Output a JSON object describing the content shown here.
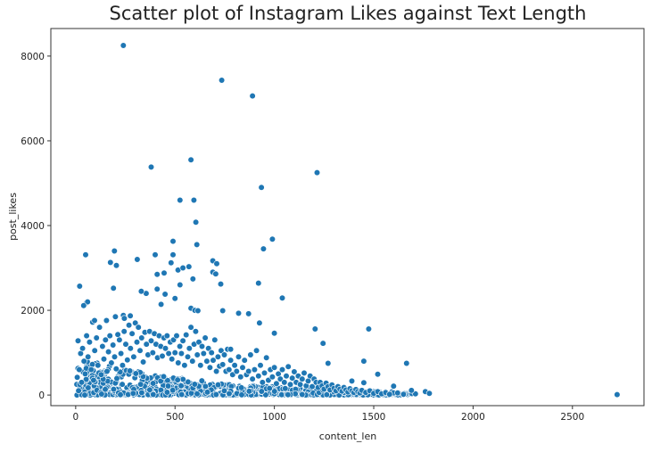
{
  "chart_data": {
    "type": "scatter",
    "title": "Scatter plot of Instagram Likes against Text Length",
    "xlabel": "content_len",
    "ylabel": "post_likes",
    "xlim": [
      -125,
      2860
    ],
    "ylim": [
      -250,
      8650
    ],
    "xticks": [
      0,
      500,
      1000,
      1500,
      2000,
      2500
    ],
    "yticks": [
      0,
      2000,
      4000,
      6000,
      8000
    ],
    "grid": false,
    "marker_color": "#1f77b4",
    "marker_edge_color": "#ffffff",
    "notable_points": [
      [
        240,
        8250
      ],
      [
        735,
        7430
      ],
      [
        890,
        7060
      ],
      [
        580,
        5550
      ],
      [
        380,
        5380
      ],
      [
        1215,
        5250
      ],
      [
        935,
        4900
      ],
      [
        525,
        4600
      ],
      [
        595,
        4600
      ],
      [
        605,
        4080
      ],
      [
        990,
        3680
      ],
      [
        490,
        3630
      ],
      [
        945,
        3450
      ],
      [
        610,
        3550
      ],
      [
        195,
        3400
      ],
      [
        50,
        3310
      ],
      [
        400,
        3310
      ],
      [
        490,
        3310
      ],
      [
        175,
        3130
      ],
      [
        310,
        3200
      ],
      [
        690,
        3170
      ],
      [
        710,
        3100
      ],
      [
        205,
        3060
      ],
      [
        570,
        3030
      ],
      [
        480,
        3120
      ],
      [
        515,
        2950
      ],
      [
        540,
        3000
      ],
      [
        445,
        2880
      ],
      [
        410,
        2850
      ],
      [
        690,
        2900
      ],
      [
        705,
        2860
      ],
      [
        590,
        2740
      ],
      [
        920,
        2640
      ],
      [
        410,
        2500
      ],
      [
        730,
        2620
      ],
      [
        20,
        2570
      ],
      [
        190,
        2520
      ],
      [
        355,
        2400
      ],
      [
        450,
        2380
      ],
      [
        525,
        2600
      ],
      [
        330,
        2450
      ],
      [
        430,
        2140
      ],
      [
        500,
        2280
      ],
      [
        55,
        2180
      ],
      [
        60,
        2200
      ],
      [
        40,
        2110
      ],
      [
        580,
        2050
      ],
      [
        600,
        2000
      ],
      [
        615,
        1990
      ],
      [
        740,
        1990
      ],
      [
        820,
        1930
      ],
      [
        870,
        1920
      ],
      [
        1040,
        2290
      ],
      [
        240,
        1880
      ],
      [
        275,
        1870
      ],
      [
        200,
        1850
      ],
      [
        245,
        1810
      ],
      [
        1205,
        1560
      ],
      [
        1475,
        1560
      ],
      [
        1245,
        1220
      ],
      [
        925,
        1700
      ],
      [
        1000,
        1460
      ],
      [
        95,
        1760
      ],
      [
        155,
        1760
      ],
      [
        780,
        1080
      ],
      [
        1450,
        800
      ],
      [
        1665,
        750
      ],
      [
        1270,
        750
      ],
      [
        1520,
        490
      ],
      [
        1450,
        290
      ],
      [
        1390,
        330
      ],
      [
        1600,
        210
      ],
      [
        1690,
        110
      ],
      [
        1760,
        80
      ],
      [
        1780,
        40
      ],
      [
        2725,
        10
      ]
    ],
    "cluster_points": [
      [
        8,
        420
      ],
      [
        12,
        1280
      ],
      [
        18,
        600
      ],
      [
        25,
        980
      ],
      [
        30,
        300
      ],
      [
        35,
        1100
      ],
      [
        42,
        800
      ],
      [
        48,
        500
      ],
      [
        55,
        1400
      ],
      [
        62,
        900
      ],
      [
        70,
        1250
      ],
      [
        78,
        600
      ],
      [
        85,
        1720
      ],
      [
        90,
        350
      ],
      [
        96,
        1050
      ],
      [
        105,
        1350
      ],
      [
        112,
        700
      ],
      [
        120,
        1600
      ],
      [
        128,
        480
      ],
      [
        135,
        1150
      ],
      [
        142,
        850
      ],
      [
        150,
        1300
      ],
      [
        158,
        560
      ],
      [
        165,
        1020
      ],
      [
        172,
        1400
      ],
      [
        180,
        760
      ],
      [
        188,
        1180
      ],
      [
        196,
        900
      ],
      [
        204,
        620
      ],
      [
        212,
        1430
      ],
      [
        220,
        1300
      ],
      [
        228,
        980
      ],
      [
        236,
        700
      ],
      [
        244,
        1500
      ],
      [
        252,
        1200
      ],
      [
        260,
        830
      ],
      [
        268,
        1650
      ],
      [
        276,
        1100
      ],
      [
        284,
        1450
      ],
      [
        292,
        900
      ],
      [
        300,
        1700
      ],
      [
        308,
        1250
      ],
      [
        316,
        1600
      ],
      [
        324,
        1050
      ],
      [
        332,
        1350
      ],
      [
        340,
        780
      ],
      [
        348,
        1480
      ],
      [
        356,
        1200
      ],
      [
        364,
        950
      ],
      [
        372,
        1500
      ],
      [
        380,
        1280
      ],
      [
        388,
        1000
      ],
      [
        396,
        1450
      ],
      [
        404,
        1200
      ],
      [
        412,
        880
      ],
      [
        420,
        1400
      ],
      [
        428,
        1150
      ],
      [
        436,
        920
      ],
      [
        444,
        1350
      ],
      [
        452,
        1100
      ],
      [
        460,
        1400
      ],
      [
        468,
        980
      ],
      [
        476,
        1250
      ],
      [
        484,
        850
      ],
      [
        492,
        1300
      ],
      [
        500,
        1000
      ],
      [
        508,
        1400
      ],
      [
        516,
        760
      ],
      [
        524,
        1150
      ],
      [
        532,
        980
      ],
      [
        540,
        1280
      ],
      [
        548,
        700
      ],
      [
        556,
        1420
      ],
      [
        564,
        900
      ],
      [
        572,
        1100
      ],
      [
        580,
        1600
      ],
      [
        588,
        800
      ],
      [
        596,
        1200
      ],
      [
        604,
        1500
      ],
      [
        612,
        950
      ],
      [
        620,
        1250
      ],
      [
        628,
        700
      ],
      [
        636,
        1150
      ],
      [
        644,
        980
      ],
      [
        652,
        1350
      ],
      [
        660,
        800
      ],
      [
        668,
        1100
      ],
      [
        676,
        650
      ],
      [
        684,
        1000
      ],
      [
        692,
        820
      ],
      [
        700,
        1300
      ],
      [
        708,
        560
      ],
      [
        716,
        900
      ],
      [
        724,
        680
      ],
      [
        732,
        1050
      ],
      [
        740,
        720
      ],
      [
        748,
        950
      ],
      [
        756,
        560
      ],
      [
        764,
        1080
      ],
      [
        772,
        600
      ],
      [
        780,
        820
      ],
      [
        790,
        480
      ],
      [
        800,
        700
      ],
      [
        810,
        560
      ],
      [
        820,
        900
      ],
      [
        830,
        430
      ],
      [
        840,
        650
      ],
      [
        850,
        820
      ],
      [
        860,
        480
      ],
      [
        870,
        560
      ],
      [
        880,
        950
      ],
      [
        890,
        380
      ],
      [
        900,
        600
      ],
      [
        910,
        1050
      ],
      [
        920,
        450
      ],
      [
        930,
        700
      ],
      [
        940,
        300
      ],
      [
        950,
        520
      ],
      [
        960,
        880
      ],
      [
        970,
        350
      ],
      [
        980,
        600
      ],
      [
        990,
        430
      ],
      [
        1000,
        650
      ],
      [
        1010,
        270
      ],
      [
        1020,
        500
      ],
      [
        1030,
        380
      ],
      [
        1040,
        600
      ],
      [
        1050,
        300
      ],
      [
        1060,
        450
      ],
      [
        1070,
        670
      ],
      [
        1080,
        250
      ],
      [
        1090,
        400
      ],
      [
        1100,
        550
      ],
      [
        1110,
        300
      ],
      [
        1120,
        450
      ],
      [
        1130,
        250
      ],
      [
        1140,
        380
      ],
      [
        1150,
        520
      ],
      [
        1160,
        220
      ],
      [
        1170,
        330
      ],
      [
        1180,
        450
      ],
      [
        1190,
        200
      ],
      [
        1200,
        380
      ],
      [
        1210,
        300
      ],
      [
        1220,
        180
      ],
      [
        1230,
        300
      ],
      [
        1240,
        220
      ],
      [
        1250,
        140
      ],
      [
        1260,
        280
      ],
      [
        1270,
        200
      ],
      [
        1280,
        120
      ],
      [
        1290,
        240
      ],
      [
        1300,
        160
      ],
      [
        1310,
        100
      ],
      [
        1320,
        200
      ],
      [
        1330,
        140
      ],
      [
        1340,
        90
      ],
      [
        1350,
        180
      ],
      [
        1360,
        120
      ],
      [
        1370,
        70
      ],
      [
        1380,
        150
      ],
      [
        1390,
        100
      ],
      [
        1400,
        60
      ],
      [
        1410,
        130
      ],
      [
        1420,
        80
      ],
      [
        1430,
        50
      ],
      [
        1440,
        110
      ],
      [
        1460,
        60
      ],
      [
        1480,
        100
      ],
      [
        1500,
        40
      ],
      [
        1520,
        80
      ],
      [
        1540,
        30
      ],
      [
        1560,
        60
      ],
      [
        1580,
        20
      ],
      [
        1620,
        50
      ],
      [
        1650,
        20
      ],
      [
        1710,
        30
      ]
    ]
  }
}
